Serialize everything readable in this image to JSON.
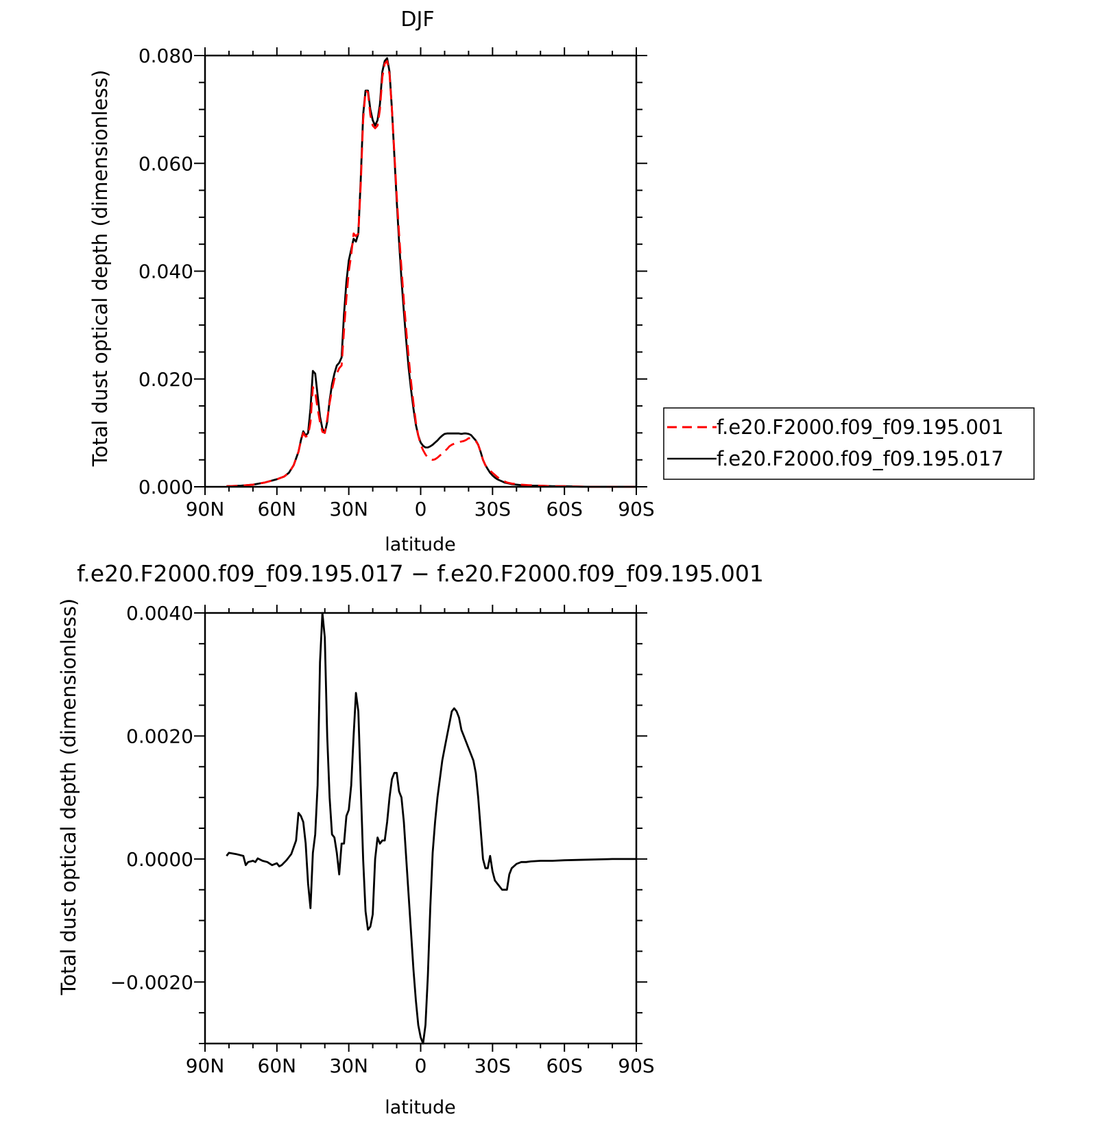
{
  "chart_data": [
    {
      "type": "line",
      "title": "DJF",
      "xlabel": "latitude",
      "ylabel": "Total dust optical depth (dimensionless)",
      "x_ticks": [
        "90N",
        "60N",
        "30N",
        "0",
        "30S",
        "60S",
        "90S"
      ],
      "y_ticks": [
        "0.000",
        "0.020",
        "0.040",
        "0.060",
        "0.080"
      ],
      "xlim": [
        90,
        -90
      ],
      "ylim": [
        0,
        0.08
      ],
      "grid": false,
      "legend_position": "right",
      "series": [
        {
          "name": "f.e20.F2000.f09_f09.195.001",
          "color": "#ff0000",
          "style": "dashed",
          "x": [
            81,
            75,
            70,
            65,
            60,
            57,
            55,
            53,
            51,
            50,
            49,
            48,
            47,
            46,
            45,
            44,
            43,
            42,
            41,
            40,
            39,
            38,
            37,
            36,
            35,
            34,
            33,
            32,
            31,
            30,
            29,
            28,
            27,
            26,
            25,
            24,
            23,
            22,
            21,
            20,
            19,
            18,
            17,
            16,
            15,
            14,
            13,
            12,
            11,
            10,
            9,
            8,
            7,
            6,
            5,
            4,
            3,
            2,
            1,
            0,
            -1,
            -2,
            -3,
            -4,
            -5,
            -6,
            -7,
            -8,
            -9,
            -10,
            -11,
            -12,
            -13,
            -14,
            -15,
            -16,
            -17,
            -18,
            -19,
            -20,
            -21,
            -22,
            -23,
            -24,
            -25,
            -26,
            -27,
            -28,
            -29,
            -30,
            -31,
            -32,
            -33,
            -34,
            -35,
            -36,
            -37,
            -38,
            -40,
            -42,
            -45,
            -50,
            -55,
            -60,
            -70,
            -80,
            -90
          ],
          "y": [
            0.0001,
            0.0002,
            0.0004,
            0.0008,
            0.0014,
            0.0019,
            0.0026,
            0.004,
            0.0065,
            0.0085,
            0.01,
            0.0093,
            0.0095,
            0.012,
            0.0185,
            0.0175,
            0.0145,
            0.012,
            0.0102,
            0.01,
            0.0125,
            0.0155,
            0.018,
            0.02,
            0.021,
            0.022,
            0.0225,
            0.029,
            0.035,
            0.04,
            0.043,
            0.047,
            0.0465,
            0.047,
            0.056,
            0.068,
            0.0735,
            0.0732,
            0.069,
            0.067,
            0.0665,
            0.067,
            0.07,
            0.076,
            0.0785,
            0.079,
            0.0765,
            0.07,
            0.062,
            0.054,
            0.047,
            0.0405,
            0.0345,
            0.029,
            0.024,
            0.0195,
            0.0155,
            0.012,
            0.0095,
            0.0078,
            0.0068,
            0.006,
            0.0054,
            0.0052,
            0.005,
            0.0051,
            0.0054,
            0.0058,
            0.0062,
            0.0066,
            0.007,
            0.0075,
            0.0078,
            0.008,
            0.0082,
            0.0083,
            0.0084,
            0.0085,
            0.0087,
            0.009,
            0.009,
            0.0087,
            0.0085,
            0.0078,
            0.0065,
            0.005,
            0.004,
            0.0035,
            0.003,
            0.0026,
            0.0022,
            0.0018,
            0.0015,
            0.0012,
            0.001,
            0.0008,
            0.0007,
            0.0006,
            0.0005,
            0.0004,
            0.0003,
            0.0002,
            0.0001,
            0.0001,
            0.0,
            0.0,
            0.0
          ]
        },
        {
          "name": "f.e20.F2000.f09_f09.195.017",
          "color": "#000000",
          "style": "solid",
          "x": [
            81,
            75,
            70,
            65,
            60,
            57,
            55,
            53,
            51,
            50,
            49,
            48,
            47,
            46,
            45,
            44,
            43,
            42,
            41,
            40,
            39,
            38,
            37,
            36,
            35,
            34,
            33,
            32,
            31,
            30,
            29,
            28,
            27,
            26,
            25,
            24,
            23,
            22,
            21,
            20,
            19,
            18,
            17,
            16,
            15,
            14,
            13,
            12,
            11,
            10,
            9,
            8,
            7,
            6,
            5,
            4,
            3,
            2,
            1,
            0,
            -1,
            -2,
            -3,
            -4,
            -5,
            -6,
            -7,
            -8,
            -9,
            -10,
            -11,
            -12,
            -13,
            -14,
            -15,
            -16,
            -17,
            -18,
            -19,
            -20,
            -21,
            -22,
            -23,
            -24,
            -25,
            -26,
            -27,
            -28,
            -29,
            -30,
            -31,
            -32,
            -33,
            -34,
            -35,
            -36,
            -37,
            -38,
            -40,
            -42,
            -45,
            -50,
            -55,
            -60,
            -70,
            -80,
            -90
          ],
          "y": [
            0.0001,
            0.0002,
            0.0004,
            0.0008,
            0.0014,
            0.0019,
            0.0026,
            0.004,
            0.0065,
            0.0086,
            0.0103,
            0.0095,
            0.01,
            0.0145,
            0.0215,
            0.021,
            0.017,
            0.013,
            0.0108,
            0.01,
            0.012,
            0.016,
            0.019,
            0.021,
            0.0225,
            0.023,
            0.024,
            0.032,
            0.038,
            0.042,
            0.044,
            0.046,
            0.0455,
            0.047,
            0.057,
            0.069,
            0.0735,
            0.0735,
            0.07,
            0.068,
            0.067,
            0.068,
            0.071,
            0.077,
            0.079,
            0.0795,
            0.077,
            0.07,
            0.0615,
            0.053,
            0.0455,
            0.0385,
            0.0325,
            0.027,
            0.022,
            0.018,
            0.0145,
            0.0115,
            0.0095,
            0.0082,
            0.0076,
            0.0073,
            0.0073,
            0.0075,
            0.0078,
            0.0082,
            0.0086,
            0.0091,
            0.0095,
            0.0098,
            0.0099,
            0.0099,
            0.0099,
            0.0099,
            0.0099,
            0.0099,
            0.0098,
            0.0099,
            0.0099,
            0.0098,
            0.0096,
            0.0091,
            0.0086,
            0.0078,
            0.0065,
            0.005,
            0.004,
            0.0033,
            0.0026,
            0.0021,
            0.0017,
            0.0014,
            0.0012,
            0.001,
            0.0008,
            0.0007,
            0.0006,
            0.0005,
            0.0004,
            0.0003,
            0.0002,
            0.0002,
            0.0001,
            0.0001,
            0.0,
            0.0,
            0.0
          ]
        }
      ]
    },
    {
      "type": "line",
      "title": "f.e20.F2000.f09_f09.195.017 − f.e20.F2000.f09_f09.195.001",
      "xlabel": "latitude",
      "ylabel": "Total dust optical depth (dimensionless)",
      "x_ticks": [
        "90N",
        "60N",
        "30N",
        "0",
        "30S",
        "60S",
        "90S"
      ],
      "y_ticks": [
        "−0.0020",
        "0.0000",
        "0.0020",
        "0.0040"
      ],
      "xlim": [
        90,
        -90
      ],
      "ylim": [
        -0.003,
        0.004
      ],
      "grid": false,
      "series": [
        {
          "color": "#000000",
          "style": "solid",
          "x": [
            81,
            80,
            77,
            74,
            73,
            72,
            70,
            69,
            68,
            66,
            64,
            62,
            60,
            59,
            58,
            56,
            54,
            52,
            51,
            50,
            49,
            48,
            47,
            46,
            45,
            44,
            43,
            42,
            41,
            40,
            39,
            38,
            37,
            36,
            35,
            34,
            33,
            32,
            31,
            30,
            29,
            28,
            27,
            26,
            25,
            24,
            23,
            22,
            21,
            20,
            19,
            18,
            17,
            16,
            15,
            14,
            13,
            12,
            11,
            10,
            9,
            8,
            7,
            6,
            5,
            4,
            3,
            2,
            1,
            0,
            -1,
            -2,
            -3,
            -4,
            -5,
            -6,
            -7,
            -8,
            -9,
            -10,
            -11,
            -12,
            -13,
            -14,
            -15,
            -16,
            -17,
            -18,
            -19,
            -20,
            -21,
            -22,
            -23,
            -24,
            -25,
            -26,
            -27,
            -28,
            -29,
            -30,
            -31,
            -32,
            -34,
            -36,
            -37,
            -38,
            -40,
            -42,
            -44,
            -46,
            -50,
            -55,
            -60,
            -70,
            -80,
            -90
          ],
          "y": [
            5e-05,
            0.0001,
            8e-05,
            5e-05,
            -0.0001,
            -5e-05,
            -3e-05,
            -5e-05,
            1e-05,
            -3e-05,
            -5e-05,
            -0.0001,
            -7e-05,
            -0.00012,
            -0.0001,
            -2e-05,
            8e-05,
            0.0003,
            0.00075,
            0.0007,
            0.0006,
            0.00025,
            -0.0004,
            -0.0008,
            0.0001,
            0.0004,
            0.0012,
            0.0032,
            0.004,
            0.0036,
            0.002,
            0.001,
            0.0004,
            0.00035,
            0.0001,
            -0.00025,
            0.00025,
            0.00025,
            0.0007,
            0.0008,
            0.0012,
            0.002,
            0.0027,
            0.0024,
            0.0012,
            0.0,
            -0.00085,
            -0.00115,
            -0.0011,
            -0.0009,
            0.0,
            0.00035,
            0.00025,
            0.0003,
            0.0003,
            0.0006,
            0.001,
            0.0013,
            0.0014,
            0.0014,
            0.0011,
            0.001,
            0.0006,
            0.0,
            -0.0006,
            -0.0012,
            -0.0018,
            -0.0023,
            -0.0027,
            -0.0029,
            -0.003,
            -0.0027,
            -0.0019,
            -0.0008,
            0.0001,
            0.0006,
            0.001,
            0.0013,
            0.0016,
            0.0018,
            0.002,
            0.0022,
            0.0024,
            0.00245,
            0.0024,
            0.0023,
            0.0021,
            0.002,
            0.0019,
            0.0018,
            0.0017,
            0.0016,
            0.0014,
            0.001,
            0.0005,
            0.0,
            -0.00015,
            -0.00015,
            5e-05,
            -0.0002,
            -0.00035,
            -0.0004,
            -0.0005,
            -0.0005,
            -0.00025,
            -0.00015,
            -8e-05,
            -5e-05,
            -5e-05,
            -4e-05,
            -3e-05,
            -3e-05,
            -2e-05,
            -1e-05,
            0.0,
            0.0
          ]
        }
      ]
    }
  ]
}
